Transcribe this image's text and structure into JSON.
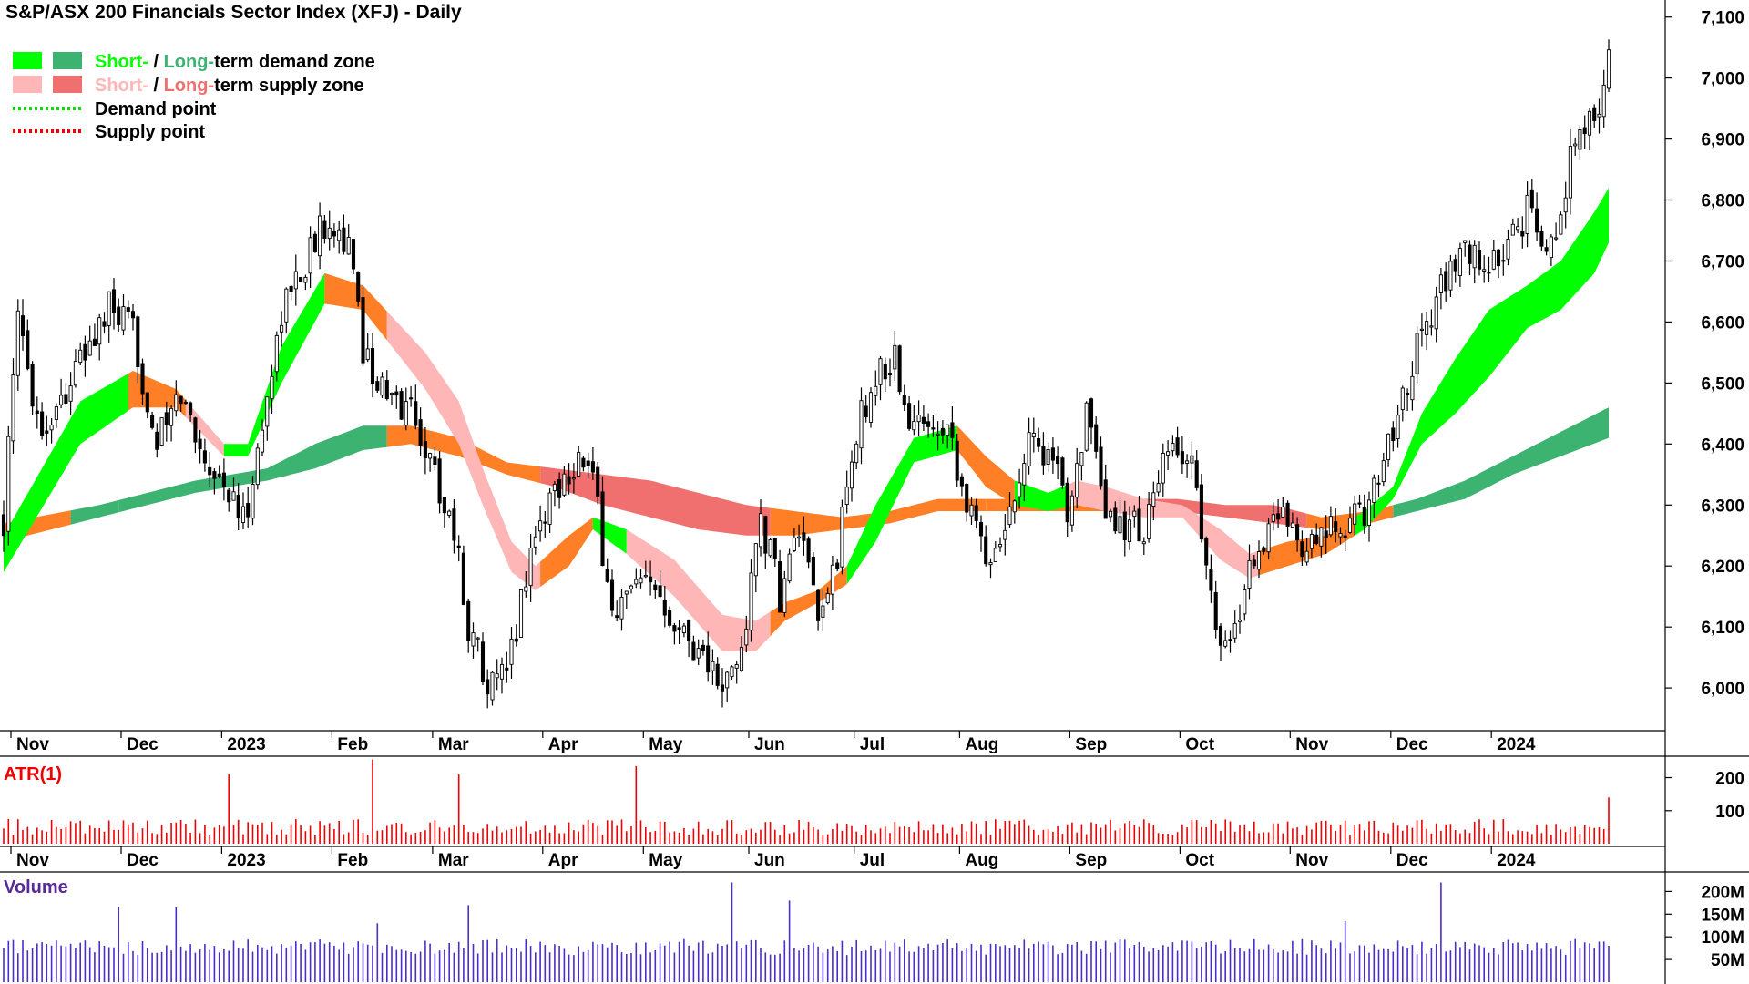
{
  "title": "S&P/ASX 200 Financials Sector Index (XFJ) - Daily",
  "colors": {
    "short_demand": "#00ff00",
    "long_demand": "#3cb371",
    "short_supply": "#ffb6b6",
    "long_supply": "#f07070",
    "demand_point": "#00dd00",
    "supply_point": "#ee0000",
    "transition_zone": "#ff7f27",
    "atr": "#ee0000",
    "volume": "#4b2ec8",
    "volume_label": "#5a2a9a",
    "candle": "#000000"
  },
  "legend": [
    {
      "type": "zone",
      "part1": "Short-",
      "sep": " / ",
      "part2": "Long-",
      "tail": "term demand zone",
      "color1": "#00ff00",
      "color2": "#3cb371"
    },
    {
      "type": "zone",
      "part1": "Short-",
      "sep": " / ",
      "part2": "Long-",
      "tail": "term supply zone",
      "color1": "#ffb6b6",
      "color2": "#f07070"
    },
    {
      "type": "point",
      "label": "Demand point",
      "color": "#00dd00"
    },
    {
      "type": "point",
      "label": "Supply point",
      "color": "#ee0000"
    }
  ],
  "months": [
    "Nov",
    "Dec",
    "2023",
    "Feb",
    "Mar",
    "Apr",
    "May",
    "Jun",
    "Jul",
    "Aug",
    "Sep",
    "Oct",
    "Nov",
    "Dec",
    "2024"
  ],
  "price_ticks": [
    "7,100",
    "7,000",
    "6,900",
    "6,800",
    "6,700",
    "6,600",
    "6,500",
    "6,400",
    "6,300",
    "6,200",
    "6,100",
    "6,000"
  ],
  "atr_label": "ATR(1)",
  "atr_ticks": [
    "200",
    "100"
  ],
  "volume_label": "Volume",
  "volume_ticks": [
    "200M",
    "150M",
    "100M",
    "50M"
  ],
  "chart_data": {
    "type": "candlestick",
    "title": "S&P/ASX 200 Financials Sector Index (XFJ) - Daily",
    "ylim": [
      5930,
      7110
    ],
    "y_ticks": [
      6000,
      6100,
      6200,
      6300,
      6400,
      6500,
      6600,
      6700,
      6800,
      6900,
      7000,
      7100
    ],
    "x_labels": [
      "Nov",
      "Dec",
      "2023",
      "Feb",
      "Mar",
      "Apr",
      "May",
      "Jun",
      "Jul",
      "Aug",
      "Sep",
      "Oct",
      "Nov",
      "Dec",
      "2024"
    ],
    "close_anchors": [
      [
        0,
        6280
      ],
      [
        3,
        6600
      ],
      [
        8,
        6420
      ],
      [
        15,
        6520
      ],
      [
        22,
        6620
      ],
      [
        27,
        6580
      ],
      [
        32,
        6400
      ],
      [
        37,
        6480
      ],
      [
        42,
        6380
      ],
      [
        47,
        6320
      ],
      [
        50,
        6270
      ],
      [
        53,
        6380
      ],
      [
        58,
        6620
      ],
      [
        63,
        6700
      ],
      [
        68,
        6780
      ],
      [
        72,
        6720
      ],
      [
        75,
        6560
      ],
      [
        80,
        6470
      ],
      [
        85,
        6460
      ],
      [
        90,
        6350
      ],
      [
        94,
        6260
      ],
      [
        97,
        6100
      ],
      [
        102,
        6000
      ],
      [
        105,
        6020
      ],
      [
        110,
        6230
      ],
      [
        115,
        6330
      ],
      [
        120,
        6380
      ],
      [
        123,
        6340
      ],
      [
        127,
        6120
      ],
      [
        132,
        6160
      ],
      [
        137,
        6160
      ],
      [
        142,
        6090
      ],
      [
        146,
        6060
      ],
      [
        150,
        5990
      ],
      [
        154,
        6060
      ],
      [
        158,
        6280
      ],
      [
        162,
        6150
      ],
      [
        166,
        6260
      ],
      [
        170,
        6100
      ],
      [
        174,
        6220
      ],
      [
        178,
        6420
      ],
      [
        182,
        6510
      ],
      [
        186,
        6540
      ],
      [
        189,
        6420
      ],
      [
        192,
        6440
      ],
      [
        197,
        6440
      ],
      [
        201,
        6300
      ],
      [
        205,
        6220
      ],
      [
        209,
        6260
      ],
      [
        214,
        6420
      ],
      [
        218,
        6380
      ],
      [
        222,
        6300
      ],
      [
        226,
        6450
      ],
      [
        230,
        6270
      ],
      [
        234,
        6270
      ],
      [
        238,
        6260
      ],
      [
        243,
        6380
      ],
      [
        248,
        6380
      ],
      [
        252,
        6140
      ],
      [
        256,
        6060
      ],
      [
        260,
        6200
      ],
      [
        264,
        6260
      ],
      [
        268,
        6290
      ],
      [
        272,
        6220
      ],
      [
        276,
        6250
      ],
      [
        280,
        6260
      ],
      [
        285,
        6300
      ],
      [
        290,
        6430
      ],
      [
        295,
        6560
      ],
      [
        300,
        6660
      ],
      [
        305,
        6710
      ],
      [
        310,
        6690
      ],
      [
        314,
        6720
      ],
      [
        318,
        6780
      ],
      [
        321,
        6720
      ],
      [
        324,
        6760
      ],
      [
        327,
        6870
      ],
      [
        330,
        6910
      ],
      [
        333,
        6950
      ],
      [
        335,
        7040
      ]
    ],
    "zones": {
      "short_upper": [
        [
          0,
          6250
        ],
        [
          16,
          6470
        ],
        [
          27,
          6520
        ],
        [
          36,
          6490
        ],
        [
          46,
          6400
        ],
        [
          51,
          6400
        ],
        [
          58,
          6560
        ],
        [
          67,
          6680
        ],
        [
          75,
          6660
        ],
        [
          88,
          6550
        ],
        [
          95,
          6470
        ],
        [
          100,
          6360
        ],
        [
          106,
          6240
        ],
        [
          111,
          6200
        ],
        [
          118,
          6250
        ],
        [
          123,
          6280
        ],
        [
          130,
          6260
        ],
        [
          140,
          6210
        ],
        [
          150,
          6120
        ],
        [
          157,
          6110
        ],
        [
          163,
          6140
        ],
        [
          170,
          6160
        ],
        [
          176,
          6200
        ],
        [
          182,
          6300
        ],
        [
          190,
          6410
        ],
        [
          199,
          6430
        ],
        [
          205,
          6380
        ],
        [
          211,
          6340
        ],
        [
          218,
          6320
        ],
        [
          224,
          6340
        ],
        [
          230,
          6330
        ],
        [
          238,
          6310
        ],
        [
          246,
          6300
        ],
        [
          254,
          6260
        ],
        [
          260,
          6220
        ],
        [
          268,
          6240
        ],
        [
          276,
          6250
        ],
        [
          284,
          6290
        ],
        [
          290,
          6330
        ],
        [
          296,
          6450
        ],
        [
          303,
          6540
        ],
        [
          310,
          6620
        ],
        [
          318,
          6660
        ],
        [
          325,
          6700
        ],
        [
          332,
          6780
        ],
        [
          335,
          6820
        ]
      ],
      "short_lower": [
        [
          0,
          6190
        ],
        [
          16,
          6400
        ],
        [
          27,
          6460
        ],
        [
          36,
          6460
        ],
        [
          46,
          6380
        ],
        [
          51,
          6380
        ],
        [
          58,
          6500
        ],
        [
          67,
          6630
        ],
        [
          75,
          6620
        ],
        [
          88,
          6490
        ],
        [
          95,
          6400
        ],
        [
          100,
          6300
        ],
        [
          106,
          6190
        ],
        [
          111,
          6160
        ],
        [
          118,
          6200
        ],
        [
          123,
          6260
        ],
        [
          130,
          6220
        ],
        [
          140,
          6150
        ],
        [
          150,
          6060
        ],
        [
          157,
          6060
        ],
        [
          163,
          6110
        ],
        [
          170,
          6140
        ],
        [
          176,
          6170
        ],
        [
          182,
          6240
        ],
        [
          190,
          6370
        ],
        [
          199,
          6390
        ],
        [
          205,
          6330
        ],
        [
          211,
          6300
        ],
        [
          218,
          6290
        ],
        [
          224,
          6300
        ],
        [
          230,
          6290
        ],
        [
          238,
          6280
        ],
        [
          246,
          6280
        ],
        [
          254,
          6210
        ],
        [
          260,
          6180
        ],
        [
          268,
          6200
        ],
        [
          276,
          6220
        ],
        [
          284,
          6260
        ],
        [
          290,
          6310
        ],
        [
          296,
          6400
        ],
        [
          303,
          6450
        ],
        [
          310,
          6510
        ],
        [
          318,
          6590
        ],
        [
          325,
          6620
        ],
        [
          332,
          6680
        ],
        [
          335,
          6730
        ]
      ],
      "long_upper": [
        [
          0,
          6270
        ],
        [
          20,
          6300
        ],
        [
          40,
          6340
        ],
        [
          55,
          6360
        ],
        [
          65,
          6400
        ],
        [
          75,
          6430
        ],
        [
          85,
          6430
        ],
        [
          95,
          6410
        ],
        [
          105,
          6370
        ],
        [
          115,
          6360
        ],
        [
          125,
          6350
        ],
        [
          135,
          6340
        ],
        [
          145,
          6320
        ],
        [
          155,
          6300
        ],
        [
          165,
          6290
        ],
        [
          175,
          6280
        ],
        [
          185,
          6290
        ],
        [
          195,
          6310
        ],
        [
          205,
          6310
        ],
        [
          215,
          6310
        ],
        [
          225,
          6310
        ],
        [
          235,
          6310
        ],
        [
          245,
          6310
        ],
        [
          255,
          6300
        ],
        [
          265,
          6300
        ],
        [
          275,
          6280
        ],
        [
          285,
          6290
        ],
        [
          295,
          6310
        ],
        [
          305,
          6340
        ],
        [
          315,
          6380
        ],
        [
          325,
          6420
        ],
        [
          335,
          6460
        ]
      ],
      "long_lower": [
        [
          0,
          6240
        ],
        [
          20,
          6280
        ],
        [
          40,
          6320
        ],
        [
          55,
          6340
        ],
        [
          65,
          6360
        ],
        [
          75,
          6390
        ],
        [
          85,
          6400
        ],
        [
          95,
          6380
        ],
        [
          105,
          6350
        ],
        [
          115,
          6330
        ],
        [
          125,
          6300
        ],
        [
          135,
          6280
        ],
        [
          145,
          6260
        ],
        [
          155,
          6250
        ],
        [
          165,
          6250
        ],
        [
          175,
          6260
        ],
        [
          185,
          6270
        ],
        [
          195,
          6290
        ],
        [
          205,
          6290
        ],
        [
          215,
          6290
        ],
        [
          225,
          6290
        ],
        [
          235,
          6290
        ],
        [
          245,
          6290
        ],
        [
          255,
          6280
        ],
        [
          265,
          6270
        ],
        [
          275,
          6260
        ],
        [
          285,
          6270
        ],
        [
          295,
          6290
        ],
        [
          305,
          6310
        ],
        [
          315,
          6350
        ],
        [
          325,
          6380
        ],
        [
          335,
          6410
        ]
      ]
    },
    "atr": {
      "ylim": [
        0,
        265
      ],
      "ticks": [
        100,
        200
      ],
      "typical": [
        25,
        75
      ],
      "spikes": [
        [
          47,
          210
        ],
        [
          77,
          255
        ],
        [
          95,
          210
        ],
        [
          132,
          235
        ],
        [
          335,
          140
        ]
      ]
    },
    "volume": {
      "ylim": [
        0,
        225
      ],
      "ticks": [
        50,
        100,
        150,
        200
      ],
      "unit": "M",
      "typical": [
        60,
        95
      ],
      "spikes": [
        [
          24,
          165
        ],
        [
          36,
          165
        ],
        [
          78,
          130
        ],
        [
          97,
          170
        ],
        [
          152,
          220
        ],
        [
          164,
          180
        ],
        [
          280,
          135
        ],
        [
          300,
          220
        ]
      ]
    }
  }
}
